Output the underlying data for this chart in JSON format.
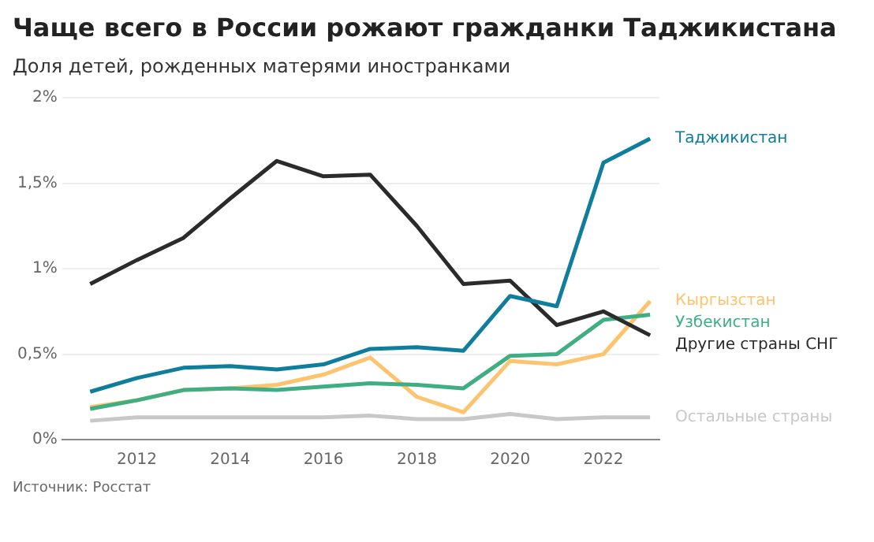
{
  "chart_data": {
    "type": "line",
    "title": "Чаще всего в России рожают гражданки Таджикистана",
    "subtitle": "Доля детей, рожденных матерями иностранками",
    "annotations": [
      "Источник: Росстат"
    ],
    "x": [
      2011,
      2012,
      2013,
      2014,
      2015,
      2016,
      2017,
      2018,
      2019,
      2020,
      2021,
      2022,
      2023
    ],
    "xlim": [
      2010.4,
      2023.2
    ],
    "xticks": [
      2012,
      2014,
      2016,
      2018,
      2020,
      2022
    ],
    "ylim": [
      0,
      2
    ],
    "yticks": [
      {
        "value": 0,
        "label": "0%"
      },
      {
        "value": 0.5,
        "label": "0,5%"
      },
      {
        "value": 1,
        "label": "1%"
      },
      {
        "value": 1.5,
        "label": "1,5%"
      },
      {
        "value": 2,
        "label": "2%"
      }
    ],
    "grid": "y",
    "marker": "none",
    "line_style": "solid",
    "series": [
      {
        "name": "Остальные страны",
        "color": "#c8c8c8",
        "values": [
          0.11,
          0.13,
          0.13,
          0.13,
          0.13,
          0.13,
          0.14,
          0.12,
          0.12,
          0.15,
          0.12,
          0.13,
          0.13
        ]
      },
      {
        "name": "Кыргызстан",
        "color": "#fdc46f",
        "values": [
          0.19,
          0.23,
          0.29,
          0.3,
          0.32,
          0.38,
          0.48,
          0.25,
          0.16,
          0.46,
          0.44,
          0.5,
          0.81
        ]
      },
      {
        "name": "Узбекистан",
        "color": "#3fae83",
        "values": [
          0.18,
          0.23,
          0.29,
          0.3,
          0.29,
          0.31,
          0.33,
          0.32,
          0.3,
          0.49,
          0.5,
          0.7,
          0.73
        ]
      },
      {
        "name": "Другие страны СНГ",
        "color": "#2b2b2b",
        "values": [
          0.91,
          1.05,
          1.18,
          1.41,
          1.63,
          1.54,
          1.55,
          1.25,
          0.91,
          0.93,
          0.67,
          0.75,
          0.61
        ]
      },
      {
        "name": "Таджикистан",
        "color": "#0f7d9c",
        "values": [
          0.28,
          0.36,
          0.42,
          0.43,
          0.41,
          0.44,
          0.53,
          0.54,
          0.52,
          0.84,
          0.78,
          1.62,
          1.76
        ]
      }
    ]
  }
}
